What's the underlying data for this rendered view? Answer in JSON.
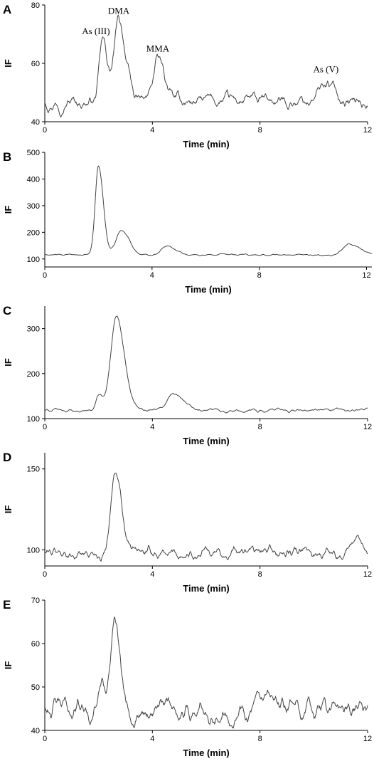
{
  "chart_data": [
    {
      "type": "line",
      "panel": "A",
      "xlabel": "Time (min)",
      "ylabel": "IF",
      "xlim": [
        0,
        12
      ],
      "ylim": [
        40,
        80
      ],
      "x_ticks": [
        0,
        4,
        8,
        12
      ],
      "y_ticks": [
        40,
        60,
        80
      ],
      "baseline": 47,
      "noise": 1.5,
      "peaks": [
        {
          "t": 2.15,
          "h": 20,
          "w": 0.12
        },
        {
          "t": 2.75,
          "h": 27,
          "w": 0.17
        },
        {
          "t": 4.2,
          "h": 14,
          "w": 0.17
        },
        {
          "t": 10.45,
          "h": 6.5,
          "w": 0.22
        }
      ],
      "annotations": [
        {
          "text": "As (III)",
          "x": 1.9,
          "y": 70
        },
        {
          "text": "DMA",
          "x": 2.75,
          "y": 77
        },
        {
          "text": "MMA",
          "x": 4.2,
          "y": 64
        },
        {
          "text": "As (V)",
          "x": 10.45,
          "y": 57
        }
      ]
    },
    {
      "type": "line",
      "panel": "B",
      "xlabel": "Time (min)",
      "ylabel": "IF",
      "xlim": [
        0,
        12.2
      ],
      "ylim": [
        70,
        500
      ],
      "x_ticks": [
        0,
        4,
        8,
        12
      ],
      "y_ticks": [
        100,
        200,
        300,
        400,
        500
      ],
      "baseline": 115,
      "noise": 2,
      "peaks": [
        {
          "t": 2.0,
          "h": 335,
          "w": 0.12
        },
        {
          "t": 2.85,
          "h": 93,
          "w": 0.2
        },
        {
          "t": 4.55,
          "h": 33,
          "w": 0.22
        },
        {
          "t": 11.4,
          "h": 42,
          "w": 0.25
        }
      ],
      "annotations": []
    },
    {
      "type": "line",
      "panel": "C",
      "xlabel": "Time (min)",
      "ylabel": "IF",
      "xlim": [
        0,
        12
      ],
      "ylim": [
        100,
        350
      ],
      "x_ticks": [
        0,
        4,
        8,
        12
      ],
      "y_ticks": [
        100,
        200,
        300
      ],
      "baseline": 118,
      "noise": 2.5,
      "peaks": [
        {
          "t": 2.0,
          "h": 32,
          "w": 0.1
        },
        {
          "t": 2.65,
          "h": 208,
          "w": 0.2
        },
        {
          "t": 4.75,
          "h": 36,
          "w": 0.22
        }
      ],
      "annotations": []
    },
    {
      "type": "line",
      "panel": "D",
      "xlabel": "Time (min)",
      "ylabel": "IF",
      "xlim": [
        0,
        12
      ],
      "ylim": [
        90,
        160
      ],
      "x_ticks": [
        0,
        4,
        8,
        12
      ],
      "y_ticks": [
        100,
        150
      ],
      "baseline": 98,
      "noise": 2.5,
      "peaks": [
        {
          "t": 2.6,
          "h": 52,
          "w": 0.15
        },
        {
          "t": 11.5,
          "h": 6,
          "w": 0.15
        }
      ],
      "annotations": []
    },
    {
      "type": "line",
      "panel": "E",
      "xlabel": "Time (min)",
      "ylabel": "IF",
      "xlim": [
        0,
        12
      ],
      "ylim": [
        40,
        70
      ],
      "x_ticks": [
        0,
        4,
        8,
        12
      ],
      "y_ticks": [
        40,
        50,
        60,
        70
      ],
      "baseline": 45,
      "noise": 1.6,
      "peaks": [
        {
          "t": 2.15,
          "h": 6,
          "w": 0.1
        },
        {
          "t": 2.6,
          "h": 21,
          "w": 0.14
        }
      ],
      "annotations": []
    }
  ]
}
